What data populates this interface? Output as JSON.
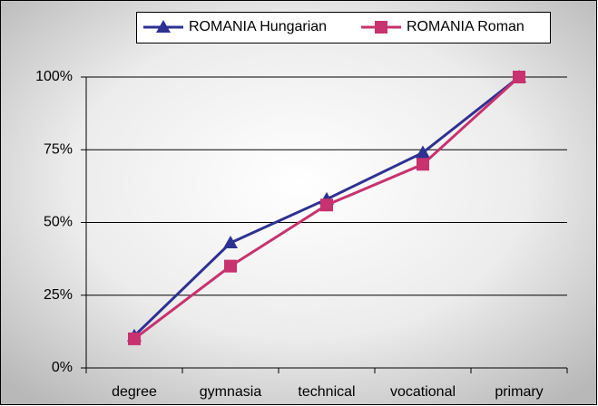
{
  "chart_data": {
    "type": "line",
    "categories": [
      "degree",
      "gymnasia",
      "technical",
      "vocational",
      "primary"
    ],
    "series": [
      {
        "name": "ROMANIA Hungarian",
        "color": "#2e3192",
        "marker": "triangle",
        "values": [
          11,
          43,
          58,
          74,
          100
        ]
      },
      {
        "name": "ROMANIA Roman",
        "color": "#c8326e",
        "marker": "square",
        "values": [
          10,
          35,
          56,
          70,
          100
        ]
      }
    ],
    "ylim": [
      0,
      100
    ],
    "yticks": [
      {
        "value": 0,
        "label": "0%"
      },
      {
        "value": 25,
        "label": "25%"
      },
      {
        "value": 50,
        "label": "50%"
      },
      {
        "value": 75,
        "label": "75%"
      },
      {
        "value": 100,
        "label": "100%"
      }
    ],
    "grid": true,
    "legend": "top"
  }
}
